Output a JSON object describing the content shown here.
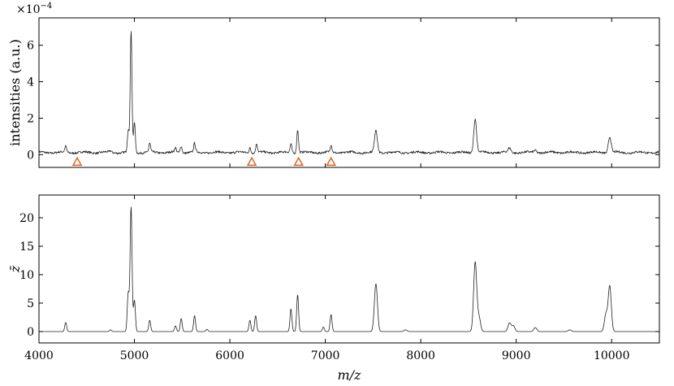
{
  "chart_data": [
    {
      "type": "line",
      "xlabel": "",
      "ylabel": "intensities (a.u.)",
      "y_multiplier": "×10",
      "y_multiplier_exp": "−4",
      "xlim": [
        4000,
        10500
      ],
      "ylim": [
        -0.7,
        7.5
      ],
      "yticks": [
        0,
        2,
        4,
        6
      ],
      "ytick_labels": [
        "0",
        "2",
        "4",
        "6"
      ],
      "baseline": 0.12,
      "grid": false,
      "peaks": [
        {
          "x": 4280,
          "y": 0.45
        },
        {
          "x": 4750,
          "y": 0.2
        },
        {
          "x": 4935,
          "y": 1.3
        },
        {
          "x": 4965,
          "y": 6.8
        },
        {
          "x": 5000,
          "y": 1.8
        },
        {
          "x": 5160,
          "y": 0.6
        },
        {
          "x": 5430,
          "y": 0.35
        },
        {
          "x": 5490,
          "y": 0.5
        },
        {
          "x": 5630,
          "y": 0.6
        },
        {
          "x": 6210,
          "y": 0.4
        },
        {
          "x": 6280,
          "y": 0.6
        },
        {
          "x": 6640,
          "y": 0.6
        },
        {
          "x": 6710,
          "y": 1.4
        },
        {
          "x": 7060,
          "y": 0.5
        },
        {
          "x": 7530,
          "y": 1.35
        },
        {
          "x": 8570,
          "y": 2.0
        },
        {
          "x": 8930,
          "y": 0.35
        },
        {
          "x": 9200,
          "y": 0.25
        },
        {
          "x": 9980,
          "y": 1.0
        }
      ],
      "markers": [
        {
          "x": 4400,
          "y": -0.4
        },
        {
          "x": 6230,
          "y": -0.4
        },
        {
          "x": 6720,
          "y": -0.4
        },
        {
          "x": 7060,
          "y": -0.4
        }
      ],
      "marker_color": "#e06a2c"
    },
    {
      "type": "line",
      "xlabel": "m/z",
      "ylabel": "z̄",
      "xlim": [
        4000,
        10500
      ],
      "ylim": [
        -2,
        24
      ],
      "xticks": [
        4000,
        5000,
        6000,
        7000,
        8000,
        9000,
        10000
      ],
      "xtick_labels": [
        "4000",
        "5000",
        "6000",
        "7000",
        "8000",
        "9000",
        "10000"
      ],
      "yticks": [
        0,
        5,
        10,
        15,
        20
      ],
      "ytick_labels": [
        "0",
        "5",
        "10",
        "15",
        "20"
      ],
      "baseline": 0,
      "grid": false,
      "peaks": [
        {
          "x": 4280,
          "y": 1.6
        },
        {
          "x": 4750,
          "y": 0.3
        },
        {
          "x": 4935,
          "y": 6.8
        },
        {
          "x": 4965,
          "y": 22.0
        },
        {
          "x": 5000,
          "y": 5.5
        },
        {
          "x": 5160,
          "y": 2.0
        },
        {
          "x": 5430,
          "y": 1.0
        },
        {
          "x": 5490,
          "y": 2.3
        },
        {
          "x": 5630,
          "y": 2.8
        },
        {
          "x": 5760,
          "y": 0.4
        },
        {
          "x": 6210,
          "y": 2.0
        },
        {
          "x": 6270,
          "y": 2.8
        },
        {
          "x": 6640,
          "y": 4.0
        },
        {
          "x": 6710,
          "y": 6.5
        },
        {
          "x": 6980,
          "y": 0.8
        },
        {
          "x": 7060,
          "y": 3.0
        },
        {
          "x": 7530,
          "y": 8.4
        },
        {
          "x": 7840,
          "y": 0.3
        },
        {
          "x": 8570,
          "y": 12.2
        },
        {
          "x": 8610,
          "y": 2.5
        },
        {
          "x": 8930,
          "y": 1.5
        },
        {
          "x": 8970,
          "y": 1.0
        },
        {
          "x": 9200,
          "y": 0.7
        },
        {
          "x": 9560,
          "y": 0.3
        },
        {
          "x": 9940,
          "y": 3.0
        },
        {
          "x": 9980,
          "y": 8.0
        }
      ]
    }
  ]
}
